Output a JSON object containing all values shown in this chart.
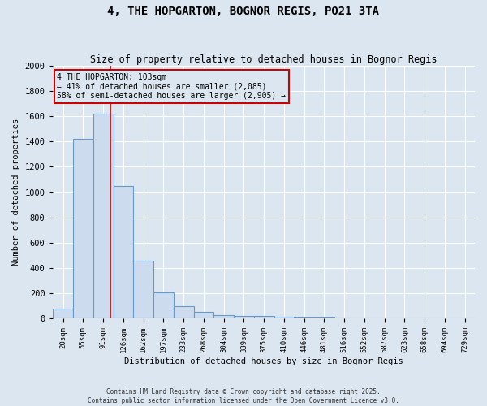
{
  "title": "4, THE HOPGARTON, BOGNOR REGIS, PO21 3TA",
  "subtitle": "Size of property relative to detached houses in Bognor Regis",
  "xlabel": "Distribution of detached houses by size in Bognor Regis",
  "ylabel": "Number of detached properties",
  "bar_color": "#ccdcee",
  "bar_edge_color": "#6699cc",
  "bg_color": "#dce6f0",
  "grid_color": "#ffffff",
  "categories": [
    "20sqm",
    "55sqm",
    "91sqm",
    "126sqm",
    "162sqm",
    "197sqm",
    "233sqm",
    "268sqm",
    "304sqm",
    "339sqm",
    "375sqm",
    "410sqm",
    "446sqm",
    "481sqm",
    "516sqm",
    "552sqm",
    "587sqm",
    "623sqm",
    "658sqm",
    "694sqm",
    "729sqm"
  ],
  "values": [
    80,
    1420,
    1620,
    1050,
    460,
    210,
    100,
    55,
    30,
    25,
    20,
    15,
    10,
    8,
    5,
    0,
    0,
    0,
    0,
    0,
    0
  ],
  "ylim": [
    0,
    2000
  ],
  "yticks": [
    0,
    200,
    400,
    600,
    800,
    1000,
    1200,
    1400,
    1600,
    1800,
    2000
  ],
  "property_label": "4 THE HOPGARTON: 103sqm",
  "annotation_line1": "← 41% of detached houses are smaller (2,085)",
  "annotation_line2": "58% of semi-detached houses are larger (2,905) →",
  "footer_line1": "Contains HM Land Registry data © Crown copyright and database right 2025.",
  "footer_line2": "Contains public sector information licensed under the Open Government Licence v3.0.",
  "annotation_box_color": "#cc0000",
  "red_line_color": "#cc0000"
}
